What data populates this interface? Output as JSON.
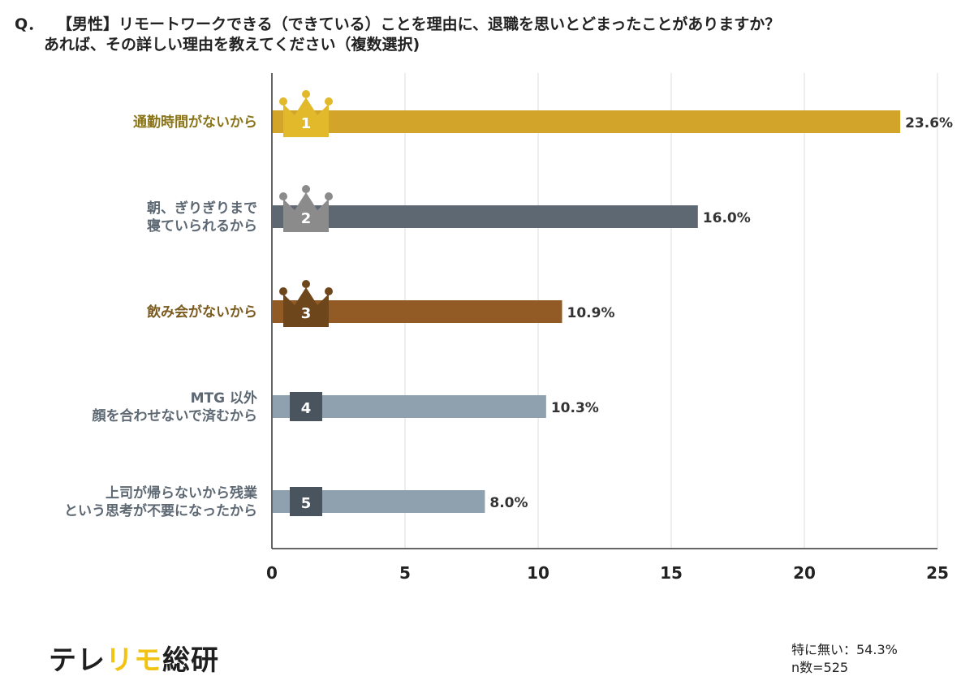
{
  "question": {
    "prefix": "Q．",
    "line1": "【男性】リモートワークできる（できている）ことを理由に、退職を思いとどまったことがありますか？",
    "line2": "あれば、その詳しい理由を教えてください（複数選択)"
  },
  "chart_data": {
    "type": "bar",
    "orientation": "horizontal",
    "categories": [
      [
        "通勤時間がないから"
      ],
      [
        "朝、ぎりぎりまで",
        "寝ていられるから"
      ],
      [
        "飲み会がないから"
      ],
      [
        "MTG 以外",
        "顔を合わせないで済むから"
      ],
      [
        "上司が帰らないから残業",
        "という思考が不要になったから"
      ]
    ],
    "values": [
      23.6,
      16.0,
      10.9,
      10.3,
      8.0
    ],
    "value_labels": [
      "23.6%",
      "16.0%",
      "10.9%",
      "10.3%",
      "8.0%"
    ],
    "ranks": [
      "1",
      "2",
      "3",
      "4",
      "5"
    ],
    "xlim": [
      0,
      25
    ],
    "xticks": [
      0,
      5,
      10,
      15,
      20,
      25
    ],
    "grid": true,
    "colors": {
      "bars": [
        "#d2a42a",
        "#5d6873",
        "#925a25",
        "#8fa0ae",
        "#8fa0ae"
      ],
      "labels": [
        "#8a7418",
        "#5d6873",
        "#7a5a1e",
        "#5d6873",
        "#5d6873"
      ],
      "badges": [
        "#e1b92b",
        "#8b8b8b",
        "#6e461c",
        "#4a545e",
        "#4a545e"
      ]
    }
  },
  "brand": {
    "part1": "テレ",
    "part2": "リモ",
    "part3": "総研"
  },
  "footnote": {
    "line1": "特に無い：54.3%",
    "line2": "n数=525"
  }
}
